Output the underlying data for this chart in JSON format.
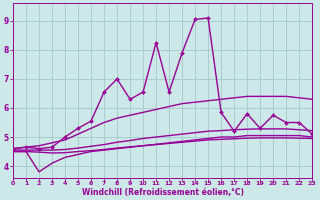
{
  "bg_color": "#cce8e8",
  "grid_color": "#aacccc",
  "line_color": "#990099",
  "xlabel": "Windchill (Refroidissement éolien,°C)",
  "xmin": 0,
  "xmax": 23,
  "ymin": 3.6,
  "ymax": 9.6,
  "yticks": [
    4,
    5,
    6,
    7,
    8,
    9
  ],
  "xticks": [
    0,
    1,
    2,
    3,
    4,
    5,
    6,
    7,
    8,
    9,
    10,
    11,
    12,
    13,
    14,
    15,
    16,
    17,
    18,
    19,
    20,
    21,
    22,
    23
  ],
  "lines": [
    {
      "x": [
        0,
        1,
        2,
        3,
        4,
        5,
        6,
        7,
        8,
        9,
        10,
        11,
        12,
        13,
        14,
        15,
        16,
        17,
        18,
        19,
        20,
        21,
        22,
        23
      ],
      "y": [
        4.6,
        4.65,
        4.7,
        4.8,
        4.9,
        5.1,
        5.3,
        5.5,
        5.65,
        5.75,
        5.85,
        5.95,
        6.05,
        6.15,
        6.2,
        6.25,
        6.3,
        6.35,
        6.4,
        6.4,
        6.4,
        6.4,
        6.35,
        6.3
      ],
      "marker": null,
      "lw": 1.0
    },
    {
      "x": [
        0,
        1,
        2,
        3,
        4,
        5,
        6,
        7,
        8,
        9,
        10,
        11,
        12,
        13,
        14,
        15,
        16,
        17,
        18,
        19,
        20,
        21,
        22,
        23
      ],
      "y": [
        4.55,
        4.55,
        4.55,
        4.55,
        4.57,
        4.62,
        4.68,
        4.74,
        4.82,
        4.88,
        4.95,
        5.0,
        5.05,
        5.1,
        5.15,
        5.2,
        5.22,
        5.25,
        5.27,
        5.28,
        5.28,
        5.28,
        5.25,
        5.22
      ],
      "marker": null,
      "lw": 1.0
    },
    {
      "x": [
        0,
        1,
        2,
        3,
        4,
        5,
        6,
        7,
        8,
        9,
        10,
        11,
        12,
        13,
        14,
        15,
        16,
        17,
        18,
        19,
        20,
        21,
        22,
        23
      ],
      "y": [
        4.5,
        4.5,
        4.48,
        4.45,
        4.46,
        4.5,
        4.53,
        4.57,
        4.62,
        4.66,
        4.7,
        4.74,
        4.78,
        4.82,
        4.86,
        4.9,
        4.92,
        4.94,
        4.96,
        4.97,
        4.97,
        4.97,
        4.96,
        4.95
      ],
      "marker": null,
      "lw": 1.0
    },
    {
      "x": [
        0,
        1,
        2,
        3,
        4,
        5,
        6,
        7,
        8,
        9,
        10,
        11,
        12,
        13,
        14,
        15,
        16,
        17,
        18,
        19,
        20,
        21,
        22,
        23
      ],
      "y": [
        4.5,
        4.5,
        3.8,
        4.1,
        4.3,
        4.4,
        4.5,
        4.55,
        4.6,
        4.65,
        4.7,
        4.75,
        4.8,
        4.85,
        4.9,
        4.95,
        5.0,
        5.0,
        5.05,
        5.05,
        5.05,
        5.05,
        5.05,
        5.0
      ],
      "marker": null,
      "lw": 1.0
    },
    {
      "x": [
        0,
        1,
        2,
        3,
        4,
        5,
        6,
        7,
        8,
        9,
        10,
        11,
        12,
        13,
        14,
        15,
        16,
        17,
        18,
        19,
        20,
        21,
        22,
        23
      ],
      "y": [
        4.6,
        4.65,
        4.6,
        4.65,
        5.0,
        5.3,
        5.55,
        6.55,
        7.0,
        6.3,
        6.55,
        8.25,
        6.55,
        7.9,
        9.05,
        9.1,
        5.85,
        5.2,
        5.8,
        5.3,
        5.75,
        5.5,
        5.5,
        5.1
      ],
      "marker": "D",
      "lw": 1.0
    }
  ]
}
